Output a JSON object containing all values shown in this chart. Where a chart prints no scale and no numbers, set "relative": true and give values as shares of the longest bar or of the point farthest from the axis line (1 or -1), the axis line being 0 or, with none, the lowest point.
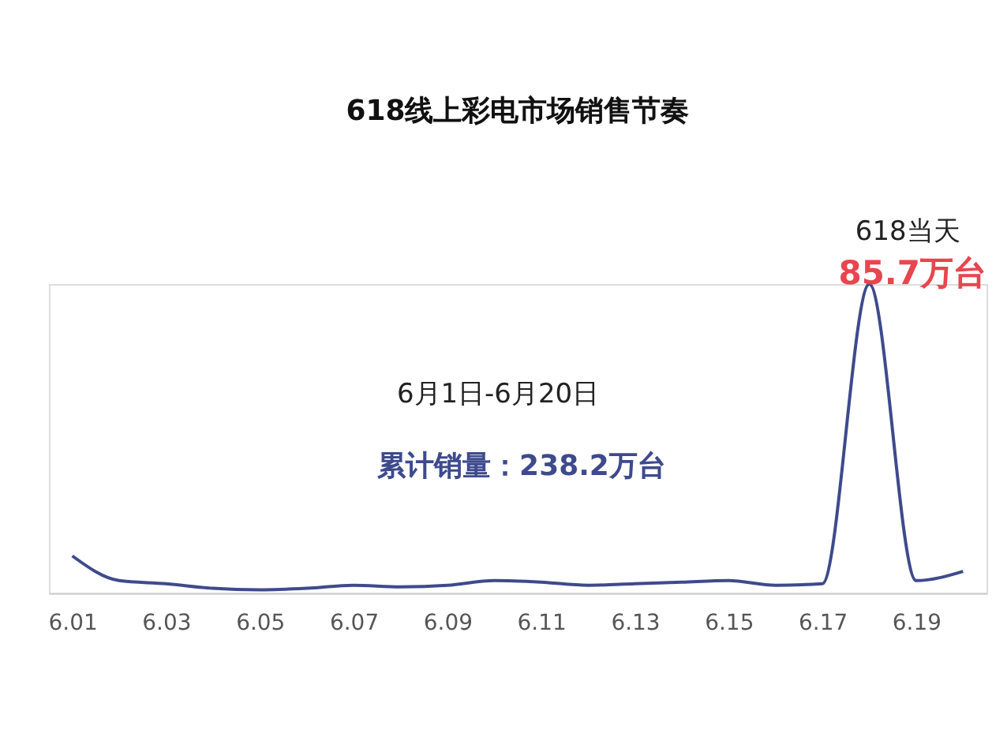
{
  "chart_data": {
    "type": "line",
    "title": "618线上彩电市场销售节奏",
    "relative": true,
    "categories": [
      "6.01",
      null,
      "6.03",
      null,
      "6.05",
      null,
      "6.07",
      null,
      "6.09",
      null,
      "6.11",
      null,
      "6.13",
      null,
      "6.15",
      null,
      "6.17",
      null,
      "6.19",
      null
    ],
    "series": [
      {
        "color": "#3e4a8c",
        "values": [
          0.12,
          0.04,
          0.03,
          0.015,
          0.01,
          0.015,
          0.025,
          0.02,
          0.025,
          0.04,
          0.035,
          0.025,
          0.03,
          0.035,
          0.04,
          0.025,
          0.03,
          1,
          0.04,
          0.07
        ]
      }
    ],
    "annotations": [
      "618当天",
      "85.7万台",
      "6月1日-6月20日",
      "累计销量：238.2万台"
    ],
    "grid": false,
    "marker": "none",
    "line_style": "solid"
  }
}
